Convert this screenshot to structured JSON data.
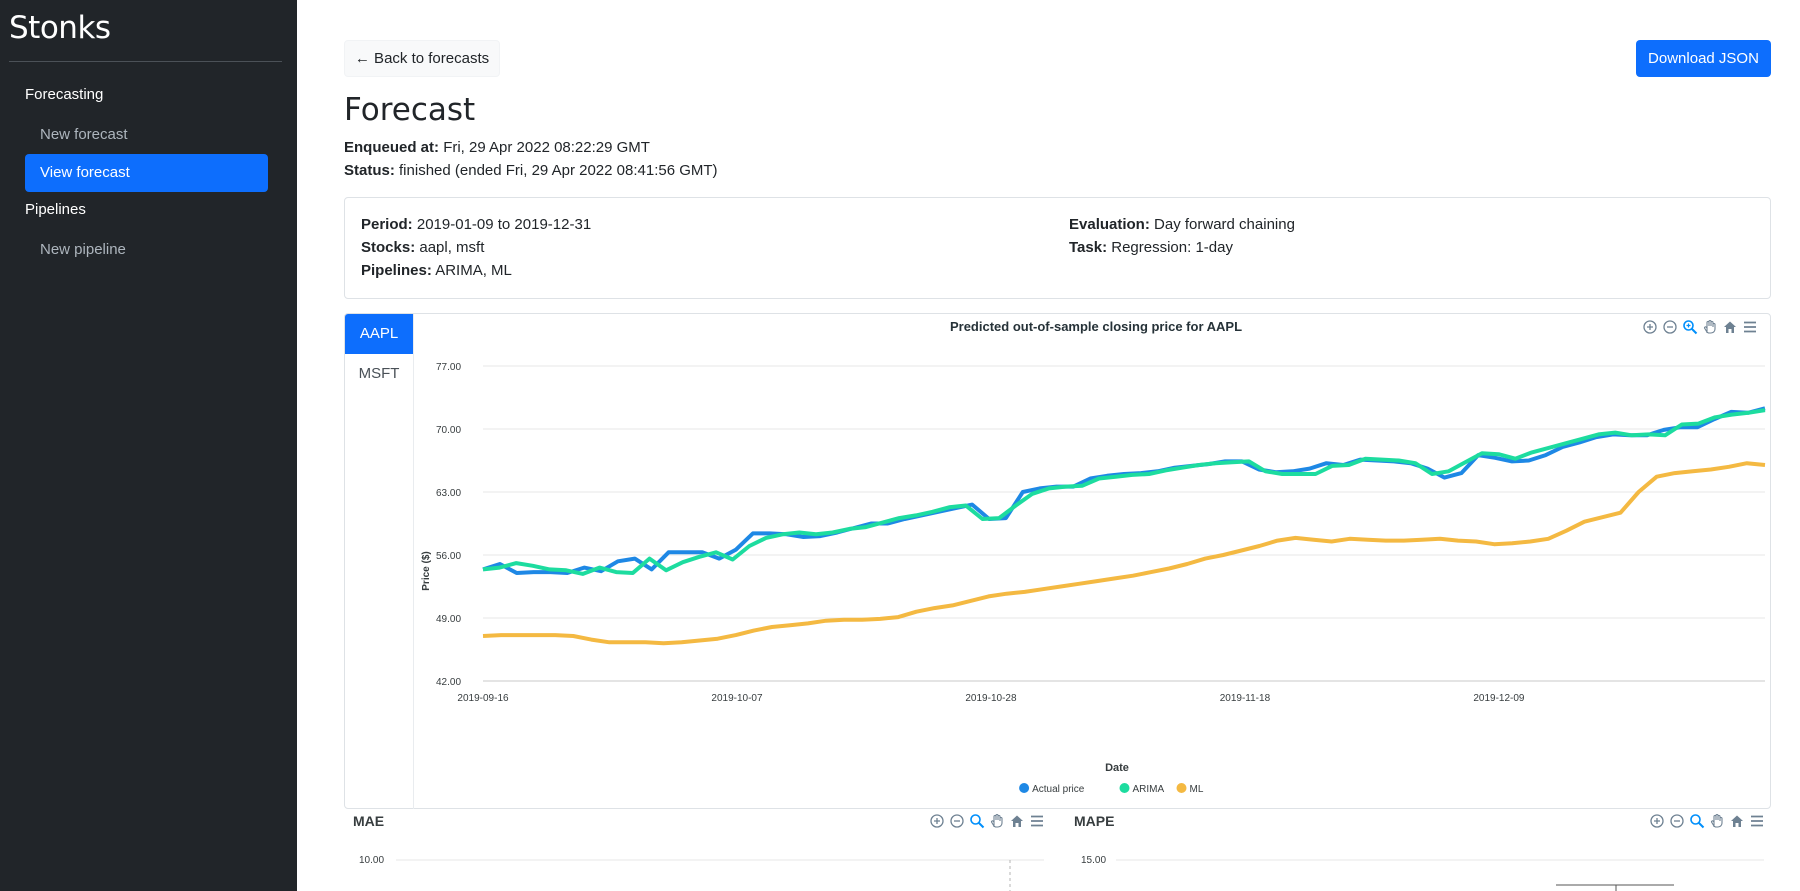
{
  "sidebar": {
    "brand": "Stonks",
    "sections": [
      {
        "label": "Forecasting",
        "items": [
          {
            "label": "New forecast",
            "active": false
          },
          {
            "label": "View forecast",
            "active": true
          }
        ]
      },
      {
        "label": "Pipelines",
        "items": [
          {
            "label": "New pipeline",
            "active": false
          }
        ]
      }
    ]
  },
  "header": {
    "back_label": "← Back to forecasts",
    "download_label": "Download JSON",
    "title": "Forecast",
    "enqueued_label": "Enqueued at:",
    "enqueued_value": "Fri, 29 Apr 2022 08:22:29 GMT",
    "status_label": "Status:",
    "status_value": "finished (ended Fri, 29 Apr 2022 08:41:56 GMT)"
  },
  "info": {
    "period_label": "Period:",
    "period_value": "2019-01-09 to 2019-12-31",
    "stocks_label": "Stocks:",
    "stocks_value": "aapl, msft",
    "pipelines_label": "Pipelines:",
    "pipelines_value": "ARIMA, ML",
    "evaluation_label": "Evaluation:",
    "evaluation_value": "Day forward chaining",
    "task_label": "Task:",
    "task_value": "Regression: 1-day"
  },
  "tabs": [
    {
      "label": "AAPL",
      "active": true
    },
    {
      "label": "MSFT",
      "active": false
    }
  ],
  "colors": {
    "primary": "#0d6efd",
    "sidebar_bg": "#212529",
    "actual": "#1e88e5",
    "arima": "#1ddc9f",
    "ml": "#f4b942"
  },
  "toolbar_icons": [
    "zoom-in-icon",
    "zoom-out-icon",
    "selection-zoom-icon",
    "pan-hand-icon",
    "home-reset-icon",
    "menu-icon"
  ],
  "chart_data": [
    {
      "type": "line",
      "title": "Predicted out-of-sample closing price for AAPL",
      "xlabel": "Date",
      "ylabel": "Price ($)",
      "ylim": [
        42,
        77
      ],
      "yticks": [
        "77.00",
        "70.00",
        "63.00",
        "56.00",
        "49.00",
        "42.00"
      ],
      "xticks": [
        "2019-09-16",
        "2019-10-07",
        "2019-10-28",
        "2019-11-18",
        "2019-12-09"
      ],
      "x_start": "2019-09-16",
      "x_end": "2019-12-31",
      "grid": true,
      "legend_position": "bottom-center",
      "series": [
        {
          "name": "Actual price",
          "color": "#1e88e5",
          "values": [
            54.4,
            55.0,
            54.0,
            54.1,
            54.1,
            54.0,
            54.6,
            54.2,
            55.3,
            55.6,
            54.4,
            56.3,
            56.3,
            56.3,
            55.6,
            56.6,
            58.4,
            58.4,
            58.3,
            58.0,
            58.1,
            58.5,
            59.0,
            59.5,
            59.5,
            60.0,
            60.4,
            60.8,
            61.2,
            61.6,
            60.0,
            60.1,
            63.0,
            63.4,
            63.6,
            63.6,
            64.5,
            64.8,
            65.0,
            65.1,
            65.3,
            65.7,
            65.9,
            66.1,
            66.4,
            66.4,
            65.5,
            65.2,
            65.3,
            65.6,
            66.2,
            66.0,
            66.6,
            66.5,
            66.4,
            66.2,
            65.6,
            64.6,
            65.1,
            67.1,
            66.8,
            66.4,
            66.5,
            67.1,
            68.0,
            68.5,
            69.1,
            69.4,
            69.3,
            69.3,
            69.9,
            70.2,
            70.2,
            71.1,
            71.9,
            71.8,
            72.3
          ]
        },
        {
          "name": "ARIMA",
          "color": "#1ddc9f",
          "values": [
            54.4,
            54.6,
            55.1,
            54.8,
            54.4,
            54.3,
            53.9,
            54.6,
            54.1,
            54.0,
            55.6,
            54.3,
            55.2,
            55.8,
            56.3,
            55.5,
            57.0,
            57.9,
            58.3,
            58.5,
            58.3,
            58.5,
            58.9,
            59.1,
            59.6,
            60.1,
            60.4,
            60.8,
            61.3,
            61.5,
            60.0,
            60.1,
            61.5,
            62.8,
            63.4,
            63.6,
            63.7,
            64.5,
            64.7,
            64.9,
            65.0,
            65.4,
            65.7,
            66.0,
            66.2,
            66.3,
            66.4,
            65.3,
            65.0,
            65.0,
            65.0,
            65.9,
            66.0,
            66.7,
            66.6,
            66.5,
            66.2,
            65.0,
            65.3,
            66.3,
            67.3,
            67.2,
            66.7,
            67.4,
            67.9,
            68.4,
            68.9,
            69.4,
            69.6,
            69.3,
            69.4,
            69.3,
            70.5,
            70.6,
            71.3,
            71.6,
            71.8,
            72.1
          ]
        },
        {
          "name": "ML",
          "color": "#f4b942",
          "values": [
            47.0,
            47.1,
            47.1,
            47.1,
            47.1,
            47.0,
            46.6,
            46.3,
            46.3,
            46.3,
            46.2,
            46.3,
            46.5,
            46.7,
            47.1,
            47.6,
            48.0,
            48.2,
            48.4,
            48.7,
            48.8,
            48.8,
            48.9,
            49.1,
            49.7,
            50.1,
            50.4,
            50.9,
            51.4,
            51.7,
            51.9,
            52.2,
            52.5,
            52.8,
            53.1,
            53.4,
            53.7,
            54.1,
            54.5,
            55.0,
            55.6,
            56.0,
            56.5,
            57.0,
            57.6,
            57.9,
            57.7,
            57.5,
            57.8,
            57.7,
            57.6,
            57.6,
            57.7,
            57.8,
            57.6,
            57.5,
            57.2,
            57.3,
            57.5,
            57.8,
            58.7,
            59.7,
            60.2,
            60.7,
            63.0,
            64.7,
            65.1,
            65.3,
            65.5,
            65.8,
            66.2,
            66.0
          ]
        }
      ]
    },
    {
      "type": "line",
      "title": "MAE",
      "yticks": [
        "10.00"
      ]
    },
    {
      "type": "line",
      "title": "MAPE",
      "yticks": [
        "15.00"
      ]
    }
  ]
}
